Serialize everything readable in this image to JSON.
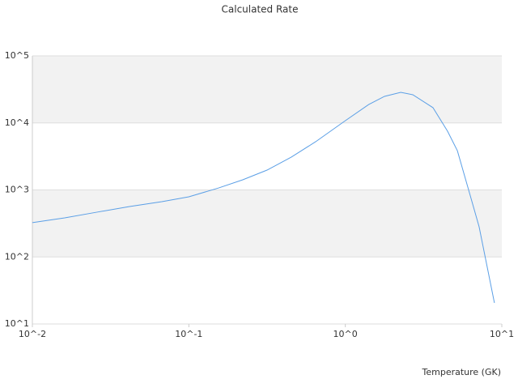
{
  "chart_data": {
    "type": "line",
    "title": "Calculated Rate",
    "x_label": "Temperature (GK)",
    "x": [
      0.01,
      0.0161,
      0.0259,
      0.0418,
      0.0672,
      0.1,
      0.155,
      0.221,
      0.316,
      0.452,
      0.646,
      1,
      1.41,
      1.78,
      2.26,
      2.7,
      3.63,
      4.5,
      5.2,
      6.21,
      7.16,
      8.97
    ],
    "series": [
      {
        "name": "Calculated Rate",
        "color": "#5b9fe6",
        "values": [
          325,
          383,
          466,
          565,
          668,
          789,
          1070,
          1417,
          1977,
          3090,
          5240,
          10800,
          18800,
          24900,
          28600,
          26300,
          16900,
          7520,
          3850,
          908,
          282,
          20.6
        ]
      }
    ],
    "xlim": [
      0.01,
      10
    ],
    "ylim": [
      10,
      100000
    ],
    "log_x": true,
    "log_y": true,
    "grid": true,
    "xticks": [
      {
        "value": 0.01,
        "label": "10^-2"
      },
      {
        "value": 0.1,
        "label": "10^-1"
      },
      {
        "value": 1,
        "label": "10^0"
      },
      {
        "value": 10,
        "label": "10^1"
      }
    ],
    "yticks": [
      {
        "value": 10,
        "label": "10^1"
      },
      {
        "value": 100,
        "label": "10^2"
      },
      {
        "value": 1000,
        "label": "10^3"
      },
      {
        "value": 10000,
        "label": "10^4"
      },
      {
        "value": 100000,
        "label": "10^5"
      }
    ]
  }
}
